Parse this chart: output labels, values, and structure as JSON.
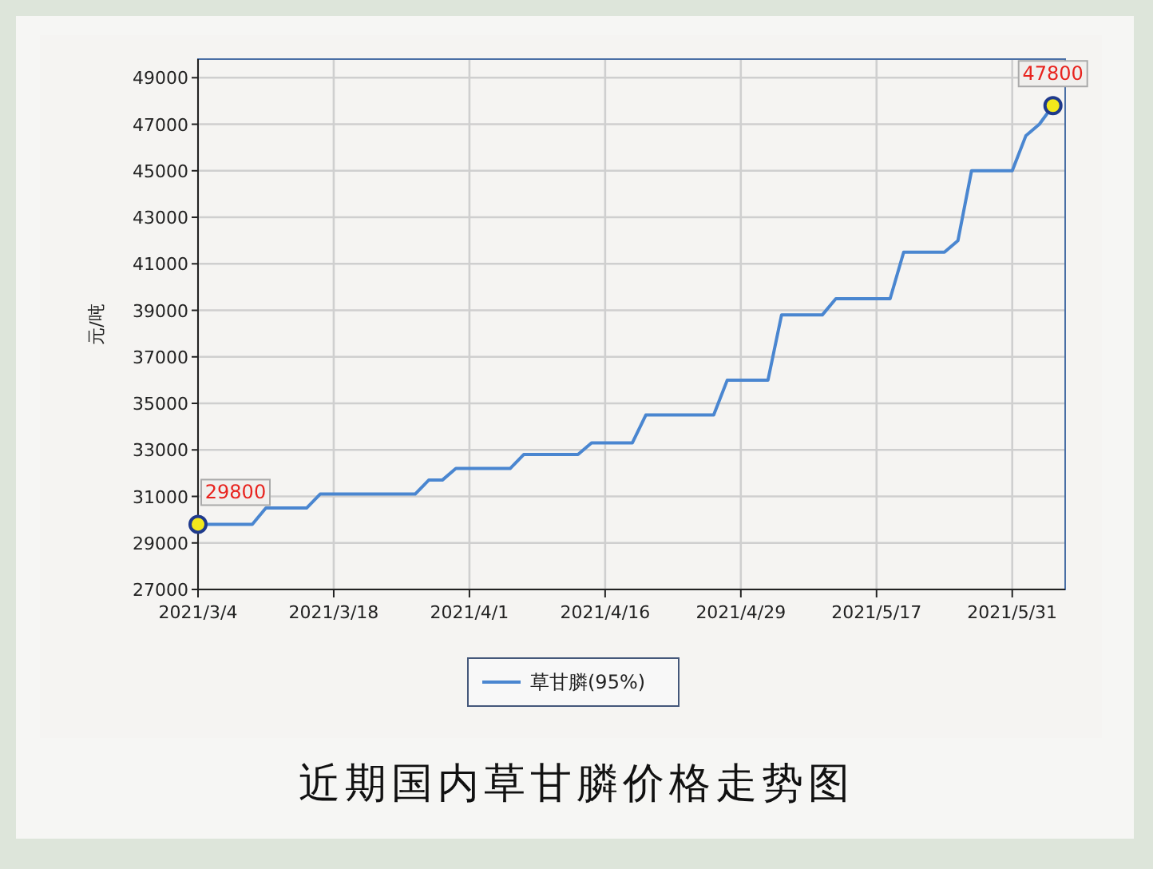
{
  "chart_data": {
    "type": "line",
    "title": "近期国内草甘膦价格走势图",
    "ylabel": "元/吨",
    "categories": [
      "2021/3/4",
      null,
      null,
      null,
      null,
      null,
      null,
      null,
      null,
      null,
      "2021/3/18",
      null,
      null,
      null,
      null,
      null,
      null,
      null,
      null,
      null,
      "2021/4/1",
      null,
      null,
      null,
      null,
      null,
      null,
      null,
      null,
      null,
      "2021/4/16",
      null,
      null,
      null,
      null,
      null,
      null,
      null,
      null,
      null,
      "2021/4/29",
      null,
      null,
      null,
      null,
      null,
      null,
      null,
      null,
      null,
      "2021/5/17",
      null,
      null,
      null,
      null,
      null,
      null,
      null,
      null,
      null,
      "2021/5/31",
      null,
      null,
      null
    ],
    "series": [
      {
        "name": "草甘膦(95%)",
        "color": "#4a86d0",
        "values": [
          29800,
          29800,
          29800,
          29800,
          29800,
          30500,
          30500,
          30500,
          30500,
          31100,
          31100,
          31100,
          31100,
          31100,
          31100,
          31100,
          31100,
          31700,
          31700,
          32200,
          32200,
          32200,
          32200,
          32200,
          32800,
          32800,
          32800,
          32800,
          32800,
          33300,
          33300,
          33300,
          33300,
          34500,
          34500,
          34500,
          34500,
          34500,
          34500,
          36000,
          36000,
          36000,
          36000,
          38800,
          38800,
          38800,
          38800,
          39500,
          39500,
          39500,
          39500,
          39500,
          41500,
          41500,
          41500,
          41500,
          42000,
          45000,
          45000,
          45000,
          45000,
          46500,
          47000,
          47800
        ],
        "value_labels": [
          "29800",
          null,
          null,
          null,
          null,
          null,
          null,
          null,
          null,
          null,
          null,
          null,
          null,
          null,
          null,
          null,
          null,
          null,
          null,
          null,
          null,
          null,
          null,
          null,
          null,
          null,
          null,
          null,
          null,
          null,
          null,
          null,
          null,
          null,
          null,
          null,
          null,
          null,
          null,
          null,
          null,
          null,
          null,
          null,
          null,
          null,
          null,
          null,
          null,
          null,
          null,
          null,
          null,
          null,
          null,
          null,
          null,
          null,
          null,
          null,
          null,
          null,
          null,
          "47800"
        ]
      }
    ],
    "ylim": [
      27000,
      49800
    ],
    "yticks": [
      27000,
      29000,
      31000,
      33000,
      35000,
      37000,
      39000,
      41000,
      43000,
      45000,
      47000,
      49000
    ],
    "grid": true,
    "legend": "bottom",
    "line_style": "solid"
  }
}
